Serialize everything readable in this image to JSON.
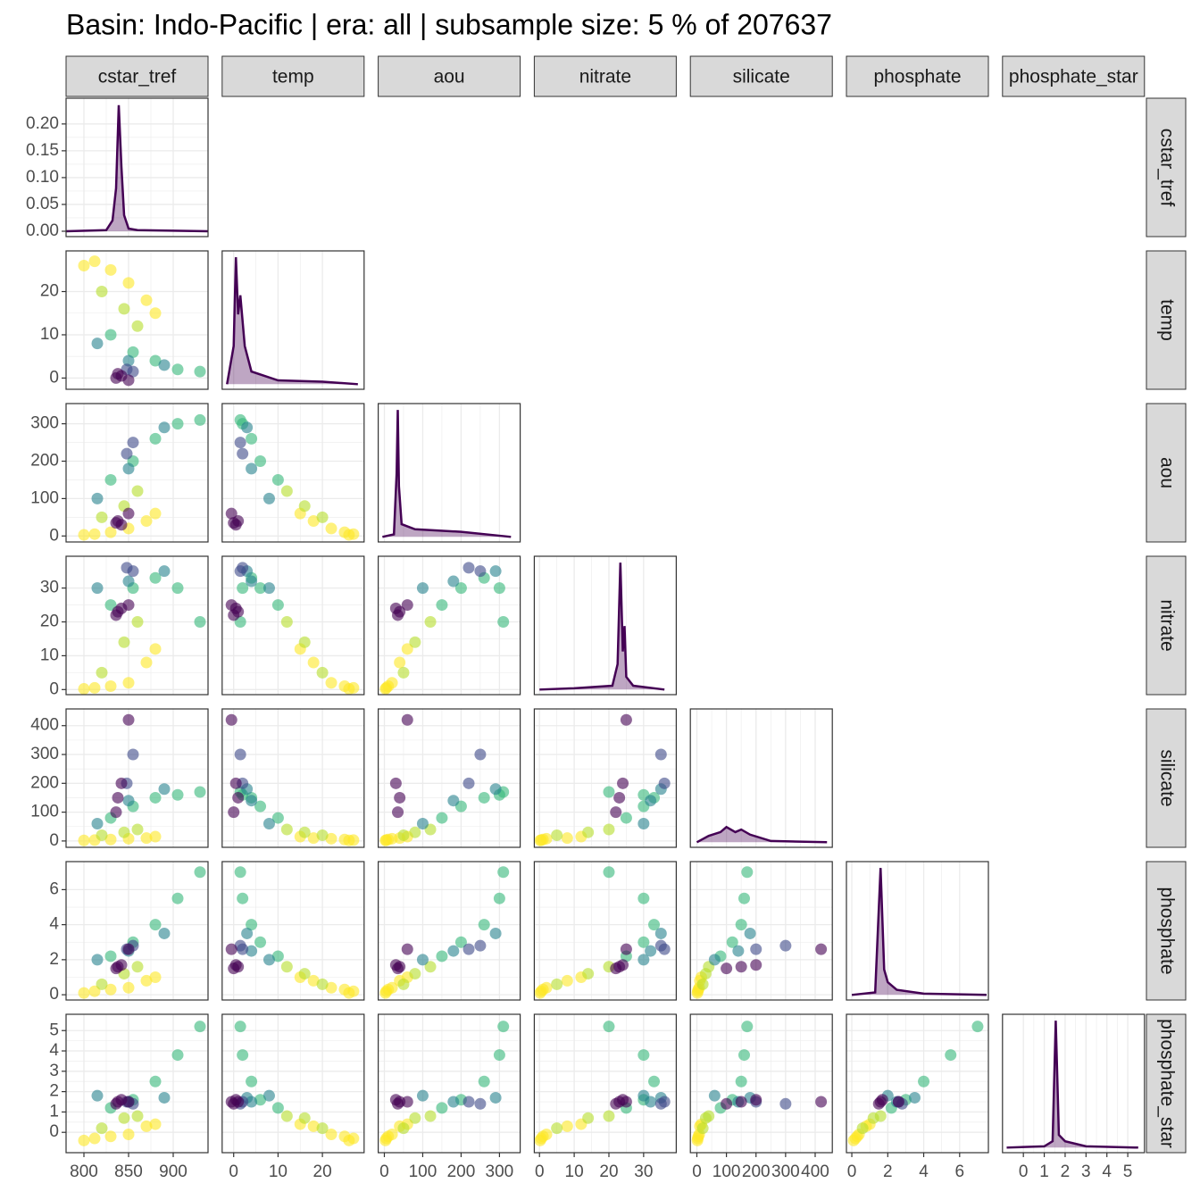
{
  "chart_data": {
    "type": "pairs",
    "title": "Basin: Indo-Pacific | era: all | subsample size: 5 % of 207637",
    "variables": [
      {
        "name": "cstar_tref",
        "lim": [
          780,
          939
        ],
        "ticks": [
          800,
          850,
          900
        ],
        "density_ylim": [
          -0.01,
          0.248
        ],
        "density_ticks": [
          {
            "value": 0,
            "label": "0.00"
          },
          {
            "value": 0.05,
            "label": "0.05"
          },
          {
            "value": 0.1,
            "label": "0.10"
          },
          {
            "value": 0.15,
            "label": "0.15"
          },
          {
            "value": 0.2,
            "label": "0.20"
          }
        ],
        "density": {
          "x": [
            780,
            825,
            832,
            836,
            839,
            842,
            845,
            850,
            860,
            939
          ],
          "y": [
            0,
            0.002,
            0.02,
            0.08,
            0.235,
            0.12,
            0.03,
            0.005,
            0.002,
            0
          ]
        }
      },
      {
        "name": "temp",
        "lim": [
          -2.6,
          29.4
        ],
        "ticks": [
          0,
          10,
          20
        ],
        "density_ylim": [
          -0.04,
          1.05
        ],
        "density": {
          "x": [
            -1.5,
            0,
            0.5,
            1,
            1.5,
            2.5,
            4,
            10,
            20,
            28
          ],
          "y": [
            0,
            0.3,
            1,
            0.55,
            0.7,
            0.3,
            0.1,
            0.03,
            0.02,
            0
          ]
        }
      },
      {
        "name": "aou",
        "lim": [
          -16,
          354
        ],
        "ticks": [
          0,
          100,
          200,
          300
        ],
        "density_ylim": [
          -0.04,
          1.05
        ],
        "density": {
          "x": [
            -5,
            25,
            32,
            35,
            38,
            45,
            80,
            200,
            330
          ],
          "y": [
            0,
            0.02,
            0.5,
            1,
            0.4,
            0.1,
            0.06,
            0.04,
            0
          ]
        }
      },
      {
        "name": "nitrate",
        "lim": [
          -1.5,
          39.4
        ],
        "ticks": [
          0,
          10,
          20,
          30
        ],
        "density_ylim": [
          -0.04,
          1.05
        ],
        "density": {
          "x": [
            0,
            10,
            21,
            22.5,
            23.3,
            24,
            24.5,
            25,
            27,
            36
          ],
          "y": [
            0,
            0.01,
            0.03,
            0.2,
            1,
            0.3,
            0.5,
            0.1,
            0.03,
            0
          ]
        }
      },
      {
        "name": "silicate",
        "lim": [
          -22,
          458
        ],
        "ticks": [
          0,
          100,
          200,
          300,
          400
        ],
        "density_ylim": [
          -0.04,
          1.05
        ],
        "density": {
          "x": [
            0,
            40,
            80,
            100,
            130,
            150,
            180,
            250,
            440
          ],
          "y": [
            0,
            0.05,
            0.08,
            0.12,
            0.08,
            0.1,
            0.06,
            0.01,
            0
          ]
        }
      },
      {
        "name": "phosphate",
        "lim": [
          -0.3,
          7.6
        ],
        "ticks": [
          0,
          2,
          4,
          6
        ],
        "density_ylim": [
          -0.04,
          1.05
        ],
        "density": {
          "x": [
            0,
            1.3,
            1.6,
            1.8,
            2,
            2.5,
            4,
            7.5
          ],
          "y": [
            0,
            0.02,
            1,
            0.2,
            0.1,
            0.04,
            0.01,
            0
          ]
        }
      },
      {
        "name": "phosphate_star",
        "lim": [
          -1,
          5.8
        ],
        "ticks": [
          0,
          1,
          2,
          3,
          4,
          5
        ],
        "density_ylim": [
          -0.04,
          1.05
        ],
        "density": {
          "x": [
            -0.8,
            1,
            1.4,
            1.55,
            1.7,
            2,
            3,
            5.5
          ],
          "y": [
            0,
            0.01,
            0.05,
            1,
            0.1,
            0.05,
            0.01,
            0
          ]
        }
      }
    ],
    "density_color": "#440154",
    "points": [
      {
        "color": "#fde725",
        "values": [
          812,
          27,
          5,
          0.5,
          3,
          0.2,
          -0.3
        ]
      },
      {
        "color": "#fde725",
        "values": [
          830,
          25,
          10,
          1,
          5,
          0.3,
          -0.2
        ]
      },
      {
        "color": "#fde725",
        "values": [
          850,
          22,
          20,
          2,
          8,
          0.4,
          -0.1
        ]
      },
      {
        "color": "#fde725",
        "values": [
          870,
          18,
          40,
          8,
          10,
          0.8,
          0.3
        ]
      },
      {
        "color": "#fde725",
        "values": [
          800,
          26,
          3,
          0.2,
          2,
          0.1,
          -0.4
        ]
      },
      {
        "color": "#fde725",
        "values": [
          880,
          15,
          60,
          12,
          15,
          1.0,
          0.4
        ]
      },
      {
        "color": "#b5de2b",
        "values": [
          820,
          20,
          50,
          5,
          20,
          0.6,
          0.2
        ]
      },
      {
        "color": "#b5de2b",
        "values": [
          845,
          16,
          80,
          14,
          30,
          1.2,
          0.7
        ]
      },
      {
        "color": "#b5de2b",
        "values": [
          860,
          12,
          120,
          20,
          40,
          1.6,
          0.8
        ]
      },
      {
        "color": "#35b779",
        "values": [
          830,
          10,
          150,
          25,
          80,
          2.2,
          1.2
        ]
      },
      {
        "color": "#35b779",
        "values": [
          855,
          6,
          200,
          30,
          120,
          3.0,
          1.6
        ]
      },
      {
        "color": "#35b779",
        "values": [
          880,
          4,
          260,
          33,
          150,
          4.0,
          2.5
        ]
      },
      {
        "color": "#35b779",
        "values": [
          905,
          2,
          300,
          30,
          160,
          5.5,
          3.8
        ]
      },
      {
        "color": "#35b779",
        "values": [
          930,
          1.5,
          310,
          20,
          170,
          7.0,
          5.2
        ]
      },
      {
        "color": "#26828e",
        "values": [
          815,
          8,
          100,
          30,
          60,
          2.0,
          1.8
        ]
      },
      {
        "color": "#26828e",
        "values": [
          850,
          4,
          180,
          32,
          140,
          2.5,
          1.5
        ]
      },
      {
        "color": "#26828e",
        "values": [
          890,
          3,
          290,
          35,
          180,
          3.5,
          1.7
        ]
      },
      {
        "color": "#3e4a89",
        "values": [
          848,
          2,
          220,
          36,
          200,
          2.6,
          1.5
        ]
      },
      {
        "color": "#3e4a89",
        "values": [
          855,
          1.5,
          250,
          35,
          300,
          2.8,
          1.4
        ]
      },
      {
        "color": "#440154",
        "values": [
          838,
          1,
          40,
          23,
          150,
          1.6,
          1.5
        ]
      },
      {
        "color": "#440154",
        "values": [
          842,
          0.5,
          30,
          24,
          200,
          1.7,
          1.6
        ]
      },
      {
        "color": "#440154",
        "values": [
          850,
          -0.5,
          60,
          25,
          420,
          2.6,
          1.5
        ]
      },
      {
        "color": "#440154",
        "values": [
          836,
          0,
          35,
          22,
          100,
          1.5,
          1.4
        ]
      }
    ]
  }
}
